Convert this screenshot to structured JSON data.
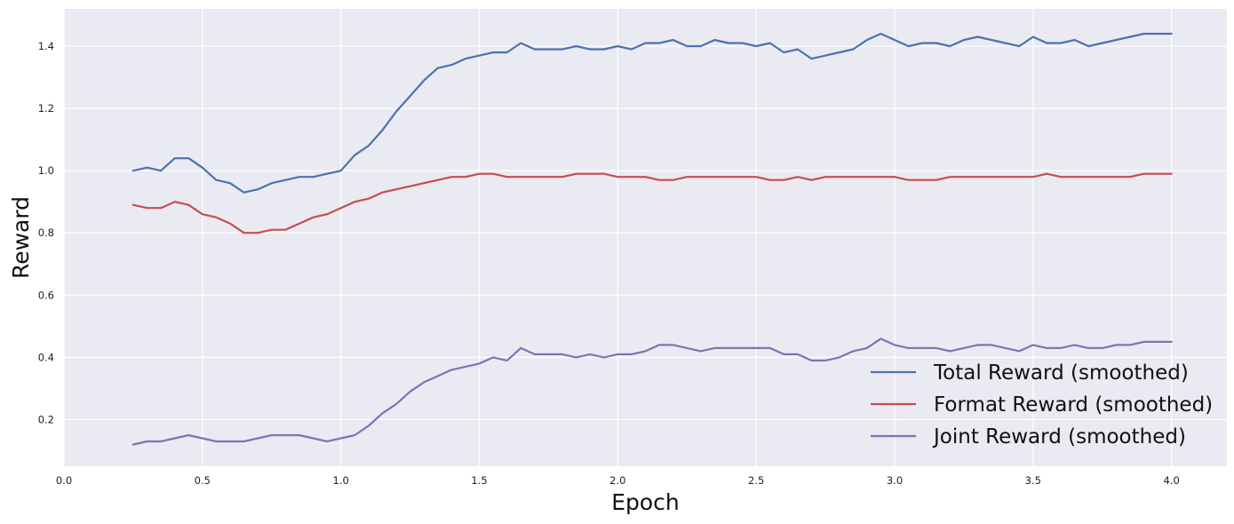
{
  "chart_data": {
    "type": "line",
    "title": "",
    "xlabel": "Epoch",
    "ylabel": "Reward",
    "xlim": [
      0.0,
      4.2
    ],
    "ylim": [
      0.05,
      1.52
    ],
    "xticks": [
      0.0,
      0.5,
      1.0,
      1.5,
      2.0,
      2.5,
      3.0,
      3.5,
      4.0
    ],
    "xtick_labels": [
      "0.0",
      "0.5",
      "1.0",
      "1.5",
      "2.0",
      "2.5",
      "3.0",
      "3.5",
      "4.0"
    ],
    "yticks": [
      0.2,
      0.4,
      0.6,
      0.8,
      1.0,
      1.2,
      1.4
    ],
    "ytick_labels": [
      "0.2",
      "0.4",
      "0.6",
      "0.8",
      "1.0",
      "1.2",
      "1.4"
    ],
    "grid": true,
    "legend_position": "lower-right",
    "background_color": "#eaeaf2",
    "grid_color": "#ffffff",
    "x": [
      0.25,
      0.3,
      0.35,
      0.4,
      0.45,
      0.5,
      0.55,
      0.6,
      0.65,
      0.7,
      0.75,
      0.8,
      0.85,
      0.9,
      0.95,
      1.0,
      1.05,
      1.1,
      1.15,
      1.2,
      1.25,
      1.3,
      1.35,
      1.4,
      1.45,
      1.5,
      1.55,
      1.6,
      1.65,
      1.7,
      1.75,
      1.8,
      1.85,
      1.9,
      1.95,
      2.0,
      2.05,
      2.1,
      2.15,
      2.2,
      2.25,
      2.3,
      2.35,
      2.4,
      2.45,
      2.5,
      2.55,
      2.6,
      2.65,
      2.7,
      2.75,
      2.8,
      2.85,
      2.9,
      2.95,
      3.0,
      3.05,
      3.1,
      3.15,
      3.2,
      3.25,
      3.3,
      3.35,
      3.4,
      3.45,
      3.5,
      3.55,
      3.6,
      3.65,
      3.7,
      3.75,
      3.8,
      3.85,
      3.9,
      3.95,
      4.0
    ],
    "series": [
      {
        "name": "Total Reward (smoothed)",
        "color": "#4c72b0",
        "values": [
          1.0,
          1.01,
          1.0,
          1.04,
          1.04,
          1.01,
          0.97,
          0.96,
          0.93,
          0.94,
          0.96,
          0.97,
          0.98,
          0.98,
          0.99,
          1.0,
          1.05,
          1.08,
          1.13,
          1.19,
          1.24,
          1.29,
          1.33,
          1.34,
          1.36,
          1.37,
          1.38,
          1.38,
          1.41,
          1.39,
          1.39,
          1.39,
          1.4,
          1.39,
          1.39,
          1.4,
          1.39,
          1.41,
          1.41,
          1.42,
          1.4,
          1.4,
          1.42,
          1.41,
          1.41,
          1.4,
          1.41,
          1.38,
          1.39,
          1.36,
          1.37,
          1.38,
          1.39,
          1.42,
          1.44,
          1.42,
          1.4,
          1.41,
          1.41,
          1.4,
          1.42,
          1.43,
          1.42,
          1.41,
          1.4,
          1.43,
          1.41,
          1.41,
          1.42,
          1.4,
          1.41,
          1.42,
          1.43,
          1.44,
          1.44,
          1.44
        ]
      },
      {
        "name": "Format Reward (smoothed)",
        "color": "#c44e52",
        "values": [
          0.89,
          0.88,
          0.88,
          0.9,
          0.89,
          0.86,
          0.85,
          0.83,
          0.8,
          0.8,
          0.81,
          0.81,
          0.83,
          0.85,
          0.86,
          0.88,
          0.9,
          0.91,
          0.93,
          0.94,
          0.95,
          0.96,
          0.97,
          0.98,
          0.98,
          0.99,
          0.99,
          0.98,
          0.98,
          0.98,
          0.98,
          0.98,
          0.99,
          0.99,
          0.99,
          0.98,
          0.98,
          0.98,
          0.97,
          0.97,
          0.98,
          0.98,
          0.98,
          0.98,
          0.98,
          0.98,
          0.97,
          0.97,
          0.98,
          0.97,
          0.98,
          0.98,
          0.98,
          0.98,
          0.98,
          0.98,
          0.97,
          0.97,
          0.97,
          0.98,
          0.98,
          0.98,
          0.98,
          0.98,
          0.98,
          0.98,
          0.99,
          0.98,
          0.98,
          0.98,
          0.98,
          0.98,
          0.98,
          0.99,
          0.99,
          0.99
        ]
      },
      {
        "name": "Joint Reward (smoothed)",
        "color": "#8172b3",
        "values": [
          0.12,
          0.13,
          0.13,
          0.14,
          0.15,
          0.14,
          0.13,
          0.13,
          0.13,
          0.14,
          0.15,
          0.15,
          0.15,
          0.14,
          0.13,
          0.14,
          0.15,
          0.18,
          0.22,
          0.25,
          0.29,
          0.32,
          0.34,
          0.36,
          0.37,
          0.38,
          0.4,
          0.39,
          0.43,
          0.41,
          0.41,
          0.41,
          0.4,
          0.41,
          0.4,
          0.41,
          0.41,
          0.42,
          0.44,
          0.44,
          0.43,
          0.42,
          0.43,
          0.43,
          0.43,
          0.43,
          0.43,
          0.41,
          0.41,
          0.39,
          0.39,
          0.4,
          0.42,
          0.43,
          0.46,
          0.44,
          0.43,
          0.43,
          0.43,
          0.42,
          0.43,
          0.44,
          0.44,
          0.43,
          0.42,
          0.44,
          0.43,
          0.43,
          0.44,
          0.43,
          0.43,
          0.44,
          0.44,
          0.45,
          0.45,
          0.45
        ]
      }
    ]
  }
}
